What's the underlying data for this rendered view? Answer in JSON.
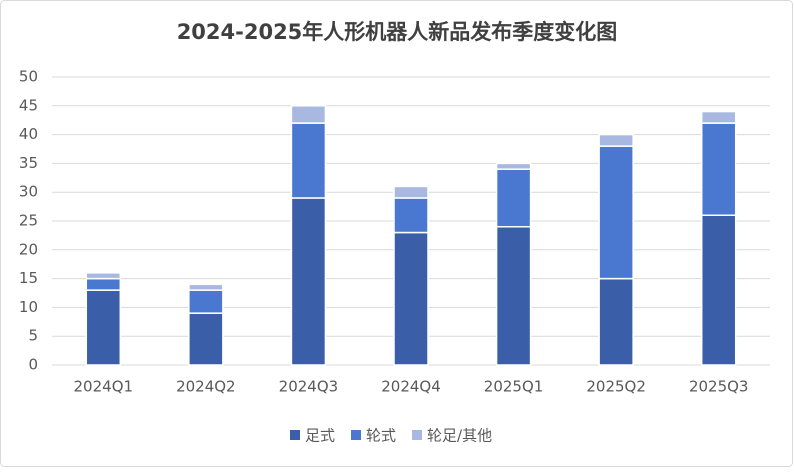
{
  "chart_data": {
    "type": "stacked-bar",
    "title": "2024-2025年人形机器人新品发布季度变化图",
    "categories": [
      "2024Q1",
      "2024Q2",
      "2024Q3",
      "2024Q4",
      "2025Q1",
      "2025Q2",
      "2025Q3"
    ],
    "series": [
      {
        "name": "足式",
        "color": "#3a5ea8",
        "values": [
          13,
          9,
          29,
          23,
          24,
          15,
          26
        ]
      },
      {
        "name": "轮式",
        "color": "#4a78d0",
        "values": [
          2,
          4,
          13,
          6,
          10,
          23,
          16
        ]
      },
      {
        "name": "轮足/其他",
        "color": "#a9b8e0",
        "values": [
          1,
          1,
          3,
          2,
          1,
          2,
          2
        ]
      }
    ],
    "ylim": [
      0,
      50
    ],
    "yticks": [
      0,
      5,
      10,
      15,
      20,
      25,
      30,
      35,
      40,
      45,
      50
    ],
    "grid": true,
    "legend": "bottom"
  }
}
